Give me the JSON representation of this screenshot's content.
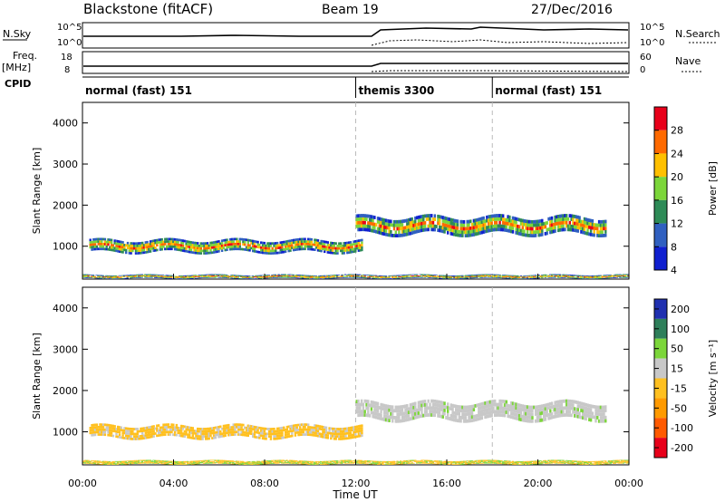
{
  "header": {
    "station": "Blackstone (fitACF)",
    "beam": "Beam 19",
    "date": "27/Dec/2016"
  },
  "noise_panel": {
    "left_label": "N.Sky",
    "right_label": "N.Search",
    "tick_top": "10^5",
    "tick_bottom": "10^0"
  },
  "freq_panel": {
    "left_label_1": "Freq.",
    "left_label_2": "[MHz]",
    "right_label": "Nave",
    "left_ticks": [
      "18",
      "8"
    ],
    "right_ticks": [
      "60",
      "0"
    ]
  },
  "cpid_panel": {
    "label": "CPID",
    "segments": [
      {
        "text": "normal (fast) 151",
        "start_h": 0
      },
      {
        "text": "themis 3300",
        "start_h": 12
      },
      {
        "text": "normal (fast) 151",
        "start_h": 18
      }
    ]
  },
  "chart_data": [
    {
      "type": "heatmap",
      "panel": "power",
      "ylabel": "Slant Range [km]",
      "ylim": [
        200,
        4500
      ],
      "y_ticks": [
        "1000",
        "2000",
        "3000",
        "4000"
      ],
      "x_ticks": [
        "00:00",
        "04:00",
        "08:00",
        "12:00",
        "16:00",
        "20:00",
        "00:00"
      ],
      "xlim_hours": [
        0,
        24
      ],
      "colorbar": {
        "label": "Power [dB]",
        "ticks": [
          "28",
          "24",
          "20",
          "16",
          "12",
          "8",
          "4"
        ],
        "colors": [
          "#e8001a",
          "#ff6a00",
          "#ffc000",
          "#7cd63a",
          "#2e8b57",
          "#3060c0",
          "#1020d0"
        ]
      },
      "echo_bands": [
        {
          "start_h": 0.3,
          "end_h": 12.3,
          "center_km": 1000,
          "width_km": 300
        },
        {
          "start_h": 12.0,
          "end_h": 23.0,
          "center_km": 1500,
          "width_km": 420
        },
        {
          "start_h": 0.0,
          "end_h": 24.0,
          "center_km": 260,
          "width_km": 90
        }
      ]
    },
    {
      "type": "heatmap",
      "panel": "velocity",
      "ylabel": "Slant Range [km]",
      "ylim": [
        200,
        4500
      ],
      "y_ticks": [
        "1000",
        "2000",
        "3000",
        "4000"
      ],
      "x_ticks": [
        "00:00",
        "04:00",
        "08:00",
        "12:00",
        "16:00",
        "20:00",
        "00:00"
      ],
      "xlim_hours": [
        0,
        24
      ],
      "xlabel": "Time UT",
      "colorbar": {
        "label": "Velocity [m s⁻¹]",
        "ticks": [
          "200",
          "100",
          "50",
          "15",
          "-15",
          "-50",
          "-100",
          "-200"
        ],
        "colors": [
          "#2030b0",
          "#2e7f5a",
          "#7cd63a",
          "#c8c8c8",
          "#ffc020",
          "#ff9a00",
          "#ff5a00",
          "#e8001a"
        ]
      },
      "echo_bands": [
        {
          "start_h": 0.3,
          "end_h": 12.3,
          "center_km": 1000,
          "width_km": 300
        },
        {
          "start_h": 12.0,
          "end_h": 23.0,
          "center_km": 1500,
          "width_km": 420
        },
        {
          "start_h": 0.0,
          "end_h": 24.0,
          "center_km": 260,
          "width_km": 90
        }
      ]
    }
  ]
}
